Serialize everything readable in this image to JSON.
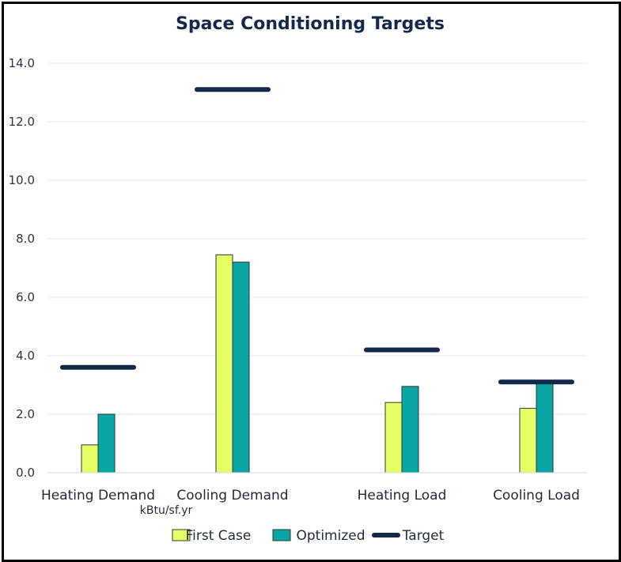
{
  "chart_data": {
    "type": "bar",
    "title": "Space Conditioning Targets",
    "unit_label": "kBtu/sf.yr",
    "categories": [
      "Heating Demand",
      "Cooling Demand",
      "Heating Load",
      "Cooling Load"
    ],
    "series": [
      {
        "name": "First Case",
        "kind": "bar",
        "color": "#e6ff66",
        "values": [
          0.95,
          7.45,
          2.4,
          2.2
        ]
      },
      {
        "name": "Optimized",
        "kind": "bar",
        "color": "#0aa6a6",
        "values": [
          2.0,
          7.2,
          2.95,
          3.1
        ]
      },
      {
        "name": "Target",
        "kind": "marker",
        "color": "#13294b",
        "values": [
          3.6,
          13.1,
          4.2,
          3.1
        ]
      }
    ],
    "ylim": [
      0,
      14
    ],
    "yticks": [
      "0.0",
      "2.0",
      "4.0",
      "6.0",
      "8.0",
      "10.0",
      "12.0",
      "14.0"
    ],
    "grid": true,
    "legend_position": "bottom"
  }
}
